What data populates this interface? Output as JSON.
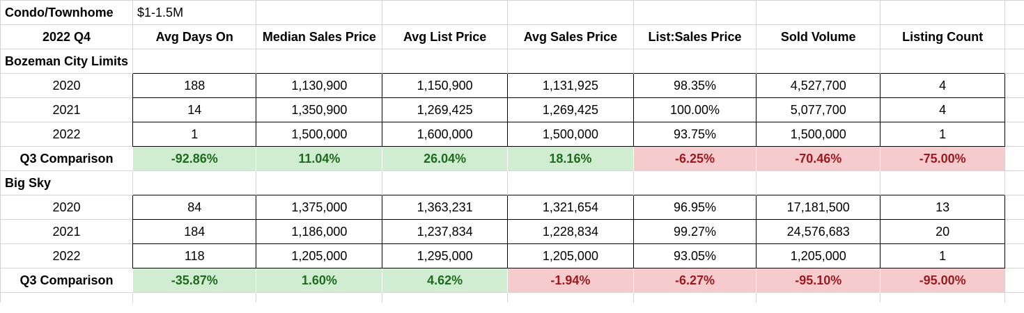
{
  "sheet": {
    "type_label": "Condo/Townhome",
    "price_range": "$1-1.5M",
    "period": "2022 Q4",
    "columns": [
      "Avg Days On",
      "Median Sales Price",
      "Avg List Price",
      "Avg Sales Price",
      "List:Sales Price",
      "Sold Volume",
      "Listing Count"
    ],
    "sections": [
      {
        "name": "Bozeman City Limits",
        "rows": [
          {
            "year": "2020",
            "values": [
              "188",
              "1,130,900",
              "1,150,900",
              "1,131,925",
              "98.35%",
              "4,527,700",
              "4"
            ]
          },
          {
            "year": "2021",
            "values": [
              "14",
              "1,350,900",
              "1,269,425",
              "1,269,425",
              "100.00%",
              "5,077,700",
              "4"
            ]
          },
          {
            "year": "2022",
            "values": [
              "1",
              "1,500,000",
              "1,600,000",
              "1,500,000",
              "93.75%",
              "1,500,000",
              "1"
            ]
          }
        ],
        "comparison": {
          "label": "Q3 Comparison",
          "values": [
            "-92.86%",
            "11.04%",
            "26.04%",
            "18.16%",
            "-6.25%",
            "-70.46%",
            "-75.00%"
          ],
          "status": [
            "pos",
            "pos",
            "pos",
            "pos",
            "neg",
            "neg",
            "neg"
          ]
        }
      },
      {
        "name": "Big Sky",
        "rows": [
          {
            "year": "2020",
            "values": [
              "84",
              "1,375,000",
              "1,363,231",
              "1,321,654",
              "96.95%",
              "17,181,500",
              "13"
            ]
          },
          {
            "year": "2021",
            "values": [
              "184",
              "1,186,000",
              "1,237,834",
              "1,228,834",
              "99.27%",
              "24,576,683",
              "20"
            ]
          },
          {
            "year": "2022",
            "values": [
              "118",
              "1,205,000",
              "1,295,000",
              "1,205,000",
              "93.05%",
              "1,205,000",
              "1"
            ]
          }
        ],
        "comparison": {
          "label": "Q3 Comparison",
          "values": [
            "-35.87%",
            "1.60%",
            "4.62%",
            "-1.94%",
            "-6.27%",
            "-95.10%",
            "-95.00%"
          ],
          "status": [
            "pos",
            "pos",
            "pos",
            "neg",
            "neg",
            "neg",
            "neg"
          ]
        }
      }
    ]
  },
  "colors": {
    "positive_bg": "#d0ecd1",
    "positive_text": "#1e6b1e",
    "negative_bg": "#f6cbcd",
    "negative_text": "#9b1a1f",
    "grid": "#d4d4d4"
  }
}
